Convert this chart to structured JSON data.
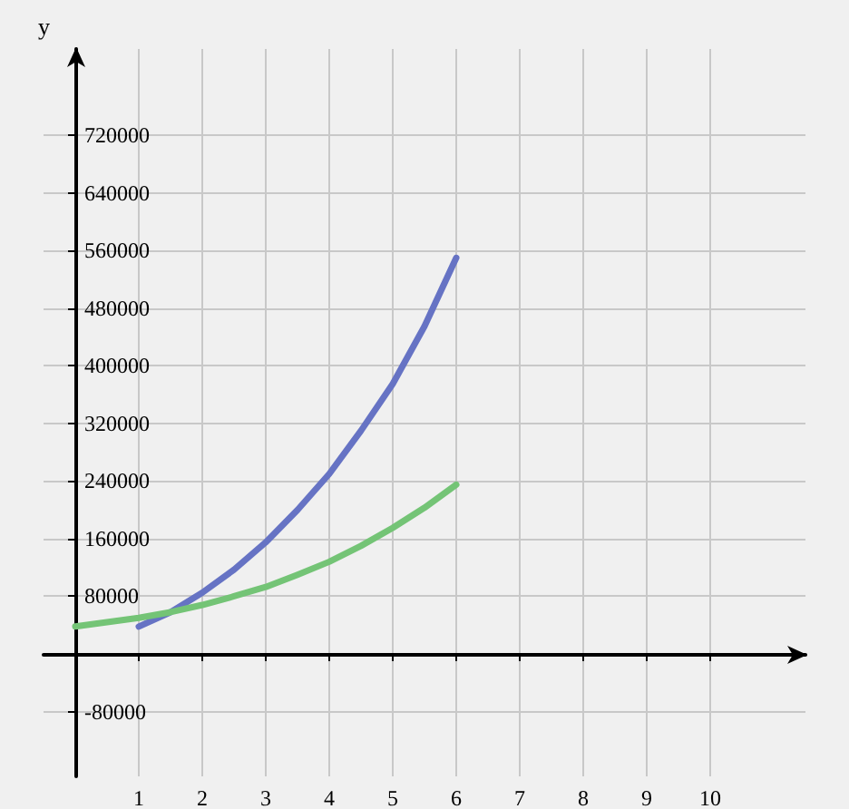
{
  "chart_data": {
    "type": "line",
    "ylabel": "y",
    "xlim": [
      -0.5,
      11.5
    ],
    "ylim": [
      -170000,
      840000
    ],
    "xticks": [
      1,
      2,
      3,
      4,
      5,
      6,
      7,
      8,
      9,
      10
    ],
    "yticks": [
      -80000,
      80000,
      160000,
      240000,
      320000,
      400000,
      480000,
      560000,
      640000,
      720000
    ],
    "grid": true,
    "marker": "none",
    "line_style": "solid",
    "series": [
      {
        "color": "#6673c4",
        "x": [
          1,
          1.5,
          2,
          2.5,
          3,
          3.5,
          4,
          4.5,
          5,
          5.5,
          6
        ],
        "values": [
          38000,
          58000,
          85000,
          117000,
          155000,
          200000,
          250000,
          310000,
          375000,
          455000,
          550000
        ]
      },
      {
        "color": "#74c476",
        "x": [
          0,
          0.5,
          1,
          1.5,
          2,
          2.5,
          3,
          3.5,
          4,
          4.5,
          5,
          5.5,
          6
        ],
        "values": [
          38000,
          44000,
          50000,
          58000,
          68000,
          80000,
          93000,
          110000,
          128000,
          150000,
          175000,
          203000,
          235000
        ]
      }
    ]
  }
}
